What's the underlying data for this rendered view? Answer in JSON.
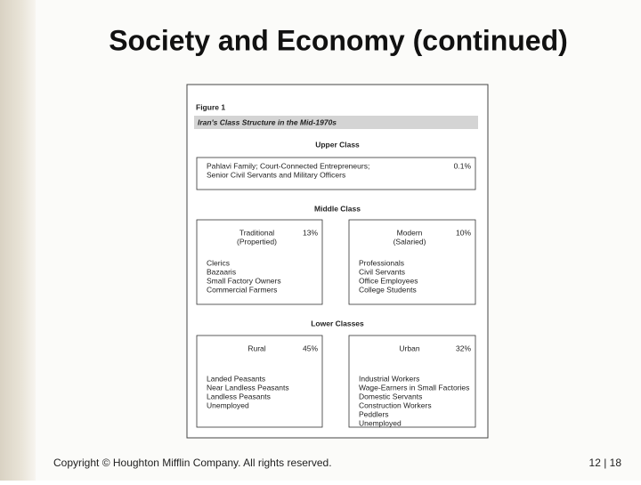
{
  "title": "Society and Economy (continued)",
  "figure": {
    "label": "Figure 1",
    "title": "Iran's Class Structure in the Mid-1970s",
    "sections": [
      {
        "heading": "Upper Class",
        "boxes": [
          {
            "share": "0.1%",
            "members": [
              "Pahlavi Family; Court-Connected Entrepreneurs;",
              "Senior Civil Servants and Military Officers"
            ]
          }
        ]
      },
      {
        "heading": "Middle Class",
        "boxes": [
          {
            "group": [
              "Traditional",
              "(Propertied)"
            ],
            "share": "13%",
            "members": [
              "Clerics",
              "Bazaaris",
              "Small Factory Owners",
              "Commercial Farmers"
            ]
          },
          {
            "group": [
              "Modern",
              "(Salaried)"
            ],
            "share": "10%",
            "members": [
              "Professionals",
              "Civil Servants",
              "Office Employees",
              "College Students"
            ]
          }
        ]
      },
      {
        "heading": "Lower Classes",
        "boxes": [
          {
            "group": [
              "Rural"
            ],
            "share": "45%",
            "members": [
              "Landed Peasants",
              "Near Landless Peasants",
              "Landless Peasants",
              "Unemployed"
            ]
          },
          {
            "group": [
              "Urban"
            ],
            "share": "32%",
            "members": [
              "Industrial Workers",
              "Wage-Earners in Small Factories",
              "Domestic Servants",
              "Construction Workers",
              "Peddlers",
              "Unemployed"
            ]
          }
        ]
      }
    ]
  },
  "footer": {
    "copyright": "Copyright © Houghton Mifflin Company. All rights reserved.",
    "page": "12 | 18"
  }
}
